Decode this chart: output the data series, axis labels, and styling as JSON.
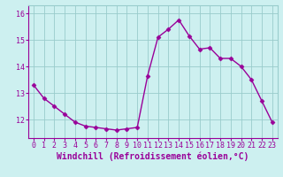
{
  "x": [
    0,
    1,
    2,
    3,
    4,
    5,
    6,
    7,
    8,
    9,
    10,
    11,
    12,
    13,
    14,
    15,
    16,
    17,
    18,
    19,
    20,
    21,
    22,
    23
  ],
  "y": [
    13.3,
    12.8,
    12.5,
    12.2,
    11.9,
    11.75,
    11.7,
    11.65,
    11.6,
    11.65,
    11.7,
    13.65,
    15.1,
    15.4,
    15.75,
    15.15,
    14.65,
    14.7,
    14.3,
    14.3,
    14.0,
    13.5,
    12.7,
    11.9
  ],
  "line_color": "#990099",
  "marker": "D",
  "marker_size": 2.5,
  "bg_color": "#cdf0f0",
  "grid_color": "#99cccc",
  "xlabel": "Windchill (Refroidissement éolien,°C)",
  "xlabel_fontsize": 7,
  "ylim": [
    11.3,
    16.3
  ],
  "xlim": [
    -0.5,
    23.5
  ],
  "yticks": [
    12,
    13,
    14,
    15,
    16
  ],
  "xtick_labels": [
    "0",
    "1",
    "2",
    "3",
    "4",
    "5",
    "6",
    "7",
    "8",
    "9",
    "10",
    "11",
    "12",
    "13",
    "14",
    "15",
    "16",
    "17",
    "18",
    "19",
    "20",
    "21",
    "22",
    "23"
  ],
  "tick_fontsize": 6,
  "tick_color": "#990099",
  "linewidth": 1.0
}
